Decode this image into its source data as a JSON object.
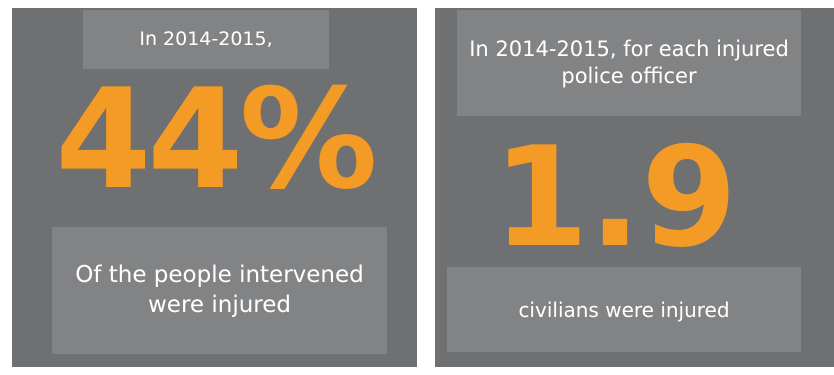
{
  "left_card": {
    "intro": "In 2014-2015,",
    "stat": "44%",
    "caption": "Of the people intervened were injured"
  },
  "right_card": {
    "intro": "In 2014-2015, for each injured police officer",
    "stat": "1.9",
    "caption": "civilians were injured"
  },
  "colors": {
    "panel_bg": "#6f7072",
    "label_bg": "#828385",
    "accent": "#f39b24",
    "text": "#ffffff"
  }
}
